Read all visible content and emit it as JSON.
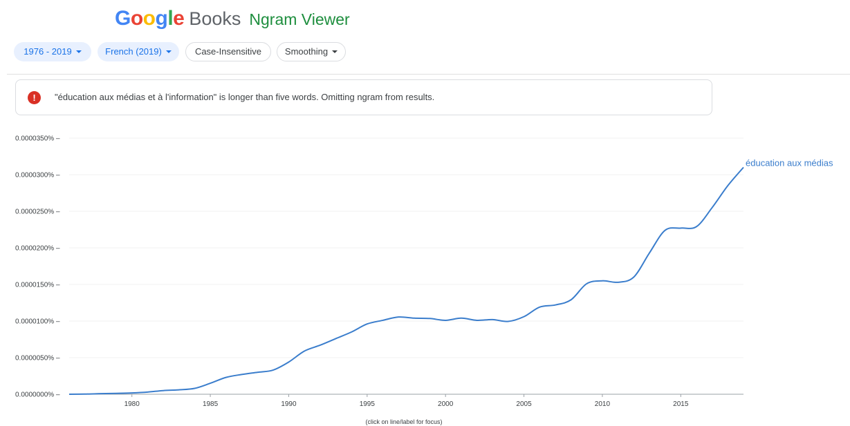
{
  "header": {
    "logo_letters": [
      {
        "char": "G",
        "color": "#4285f4"
      },
      {
        "char": "o",
        "color": "#ea4335"
      },
      {
        "char": "o",
        "color": "#fbbc05"
      },
      {
        "char": "g",
        "color": "#4285f4"
      },
      {
        "char": "l",
        "color": "#34a853"
      },
      {
        "char": "e",
        "color": "#ea4335"
      }
    ],
    "books_label": "Books",
    "ngram_label": "Ngram Viewer"
  },
  "controls": {
    "year_range": "1976 - 2019",
    "corpus": "French (2019)",
    "case_insensitive": "Case-Insensitive",
    "smoothing": "Smoothing"
  },
  "alert": {
    "icon": "exclamation-icon",
    "message": "\"éducation aux médias et à l'information\" is longer than five words. Omitting ngram from results."
  },
  "chart_data": {
    "type": "line",
    "xlim": [
      1976,
      2019
    ],
    "ylim": [
      0,
      3.5e-05
    ],
    "x_ticks": [
      1980,
      1985,
      1990,
      1995,
      2000,
      2005,
      2010,
      2015
    ],
    "y_tick_labels": [
      "0.0000000%",
      "0.0000050%",
      "0.0000100%",
      "0.0000150%",
      "0.0000200%",
      "0.0000250%",
      "0.0000300%",
      "0.0000350%"
    ],
    "grid": "horizontal",
    "series": [
      {
        "name": "éducation aux médias",
        "color": "#3a7dcc",
        "x": [
          1976,
          1977,
          1978,
          1979,
          1980,
          1981,
          1982,
          1983,
          1984,
          1985,
          1986,
          1987,
          1988,
          1989,
          1990,
          1991,
          1992,
          1993,
          1994,
          1995,
          1996,
          1997,
          1998,
          1999,
          2000,
          2001,
          2002,
          2003,
          2004,
          2005,
          2006,
          2007,
          2008,
          2009,
          2010,
          2011,
          2012,
          2013,
          2014,
          2015,
          2016,
          2017,
          2018,
          2019
        ],
        "values": [
          0.0,
          2e-08,
          8e-08,
          1.2e-07,
          1.8e-07,
          3e-07,
          5e-07,
          6e-07,
          8e-07,
          1.5e-06,
          2.3e-06,
          2.7e-06,
          3e-06,
          3.3e-06,
          4.4e-06,
          5.9e-06,
          6.7e-06,
          7.6e-06,
          8.5e-06,
          9.6e-06,
          1.01e-05,
          1.055e-05,
          1.04e-05,
          1.035e-05,
          1.01e-05,
          1.04e-05,
          1.01e-05,
          1.02e-05,
          9.95e-06,
          1.06e-05,
          1.19e-05,
          1.22e-05,
          1.29e-05,
          1.51e-05,
          1.55e-05,
          1.53e-05,
          1.6e-05,
          1.93e-05,
          2.24e-05,
          2.27e-05,
          2.29e-05,
          2.55e-05,
          2.85e-05,
          3.1e-05
        ]
      }
    ],
    "footnote": "(click on line/label for focus)"
  }
}
